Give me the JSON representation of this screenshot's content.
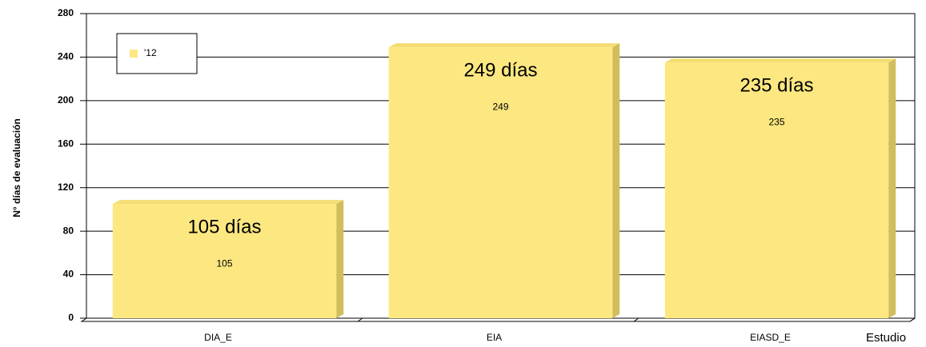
{
  "chart_data": {
    "type": "bar",
    "categories": [
      "DIA_E",
      "EIA",
      "EIASD_E"
    ],
    "series": [
      {
        "name": "'12",
        "color": "#fde780",
        "values": [
          105,
          249,
          235
        ]
      }
    ],
    "annotations": [
      "105 días",
      "249 días",
      "235 días"
    ],
    "y_label": "N° días de evaluación",
    "x_label": "Estudio",
    "ylim": [
      0,
      280
    ],
    "yticks": [
      0,
      40,
      80,
      120,
      160,
      200,
      240,
      280
    ],
    "grid": true,
    "legend": "upper left"
  }
}
